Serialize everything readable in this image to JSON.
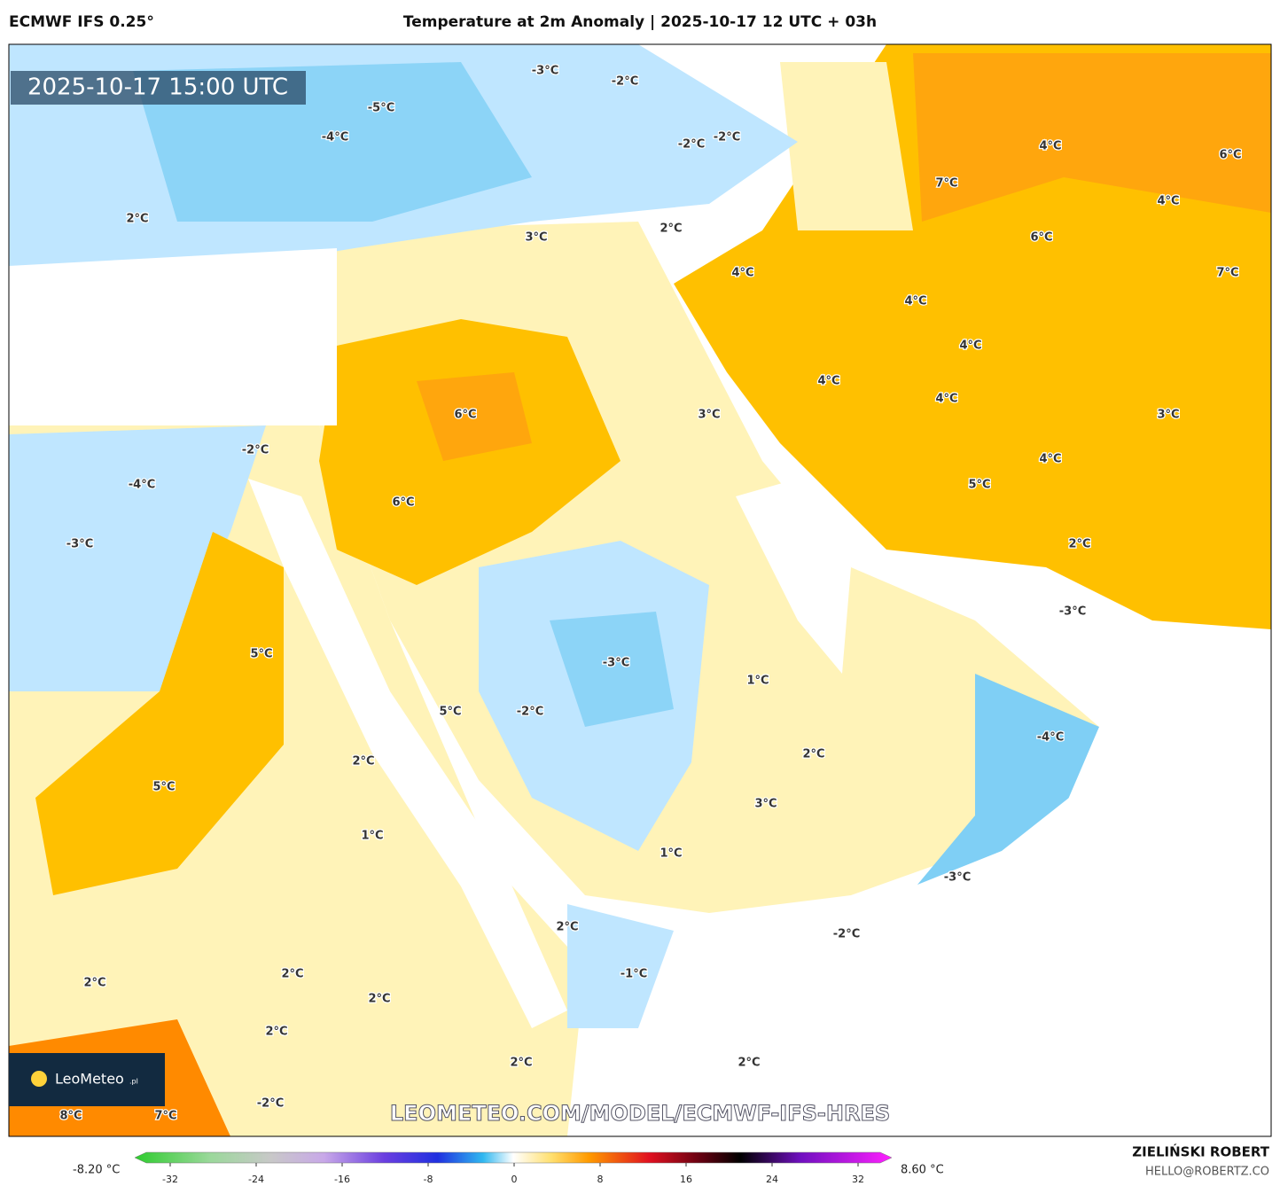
{
  "header": {
    "model": "ECMWF IFS 0.25°",
    "title": "Temperature at 2m Anomaly | 2025-10-17 12 UTC + 03h"
  },
  "map": {
    "valid_time": "2025-10-17 15:00 UTC",
    "watermark": "LEOMETEO.COM/MODEL/ECMWF-IFS-HRES",
    "logo": {
      "name": "LeoMeteo",
      "suffix": ".pl"
    },
    "labels": [
      "-3°C",
      "-2°C",
      "-5°C",
      "-4°C",
      "-2°C",
      "-2°C",
      "2°C",
      "3°C",
      "2°C",
      "4°C",
      "4°C",
      "6°C",
      "7°C",
      "4°C",
      "6°C",
      "7°C",
      "4°C",
      "4°C",
      "4°C",
      "4°C",
      "3°C",
      "3°C",
      "6°C",
      "-2°C",
      "4°C",
      "-4°C",
      "5°C",
      "6°C",
      "-3°C",
      "2°C",
      "-3°C",
      "-3°C",
      "5°C",
      "1°C",
      "5°C",
      "-2°C",
      "-4°C",
      "2°C",
      "2°C",
      "5°C",
      "3°C",
      "1°C",
      "1°C",
      "-3°C",
      "2°C",
      "-2°C",
      "2°C",
      "2°C",
      "-1°C",
      "2°C",
      "2°C",
      "2°C",
      "2°C",
      "-2°C",
      "8°C",
      "7°C"
    ]
  },
  "colorbar": {
    "min_label": "-8.20 °C",
    "max_label": "8.60 °C",
    "ticks": [
      -32,
      -24,
      -16,
      -8,
      0,
      8,
      16,
      24,
      32
    ]
  },
  "footer": {
    "author": "ZIELIŃSKI ROBERT",
    "contact": "HELLO@ROBERTZ.CO"
  }
}
